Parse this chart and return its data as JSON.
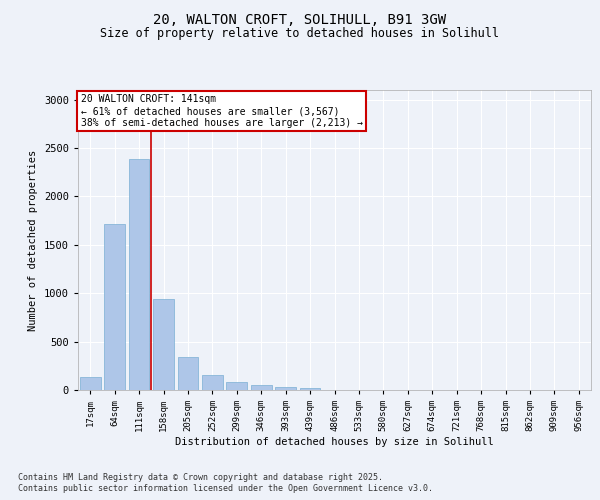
{
  "title_line1": "20, WALTON CROFT, SOLIHULL, B91 3GW",
  "title_line2": "Size of property relative to detached houses in Solihull",
  "xlabel": "Distribution of detached houses by size in Solihull",
  "ylabel": "Number of detached properties",
  "footnote_line1": "Contains HM Land Registry data © Crown copyright and database right 2025.",
  "footnote_line2": "Contains public sector information licensed under the Open Government Licence v3.0.",
  "annotation_line1": "20 WALTON CROFT: 141sqm",
  "annotation_line2": "← 61% of detached houses are smaller (3,567)",
  "annotation_line3": "38% of semi-detached houses are larger (2,213) →",
  "bar_labels": [
    "17sqm",
    "64sqm",
    "111sqm",
    "158sqm",
    "205sqm",
    "252sqm",
    "299sqm",
    "346sqm",
    "393sqm",
    "439sqm",
    "486sqm",
    "533sqm",
    "580sqm",
    "627sqm",
    "674sqm",
    "721sqm",
    "768sqm",
    "815sqm",
    "862sqm",
    "909sqm",
    "956sqm"
  ],
  "bar_values": [
    130,
    1720,
    2390,
    940,
    340,
    155,
    85,
    50,
    35,
    25,
    0,
    0,
    0,
    0,
    0,
    0,
    0,
    0,
    0,
    0,
    0
  ],
  "bar_color": "#aec6e8",
  "bar_edge_color": "#7aafd4",
  "vline_color": "#cc0000",
  "ylim": [
    0,
    3100
  ],
  "yticks": [
    0,
    500,
    1000,
    1500,
    2000,
    2500,
    3000
  ],
  "bg_color": "#eef2f9",
  "plot_bg_color": "#eef2f9",
  "annotation_box_color": "#cc0000",
  "grid_color": "#ffffff",
  "font_family": "DejaVu Sans Mono"
}
